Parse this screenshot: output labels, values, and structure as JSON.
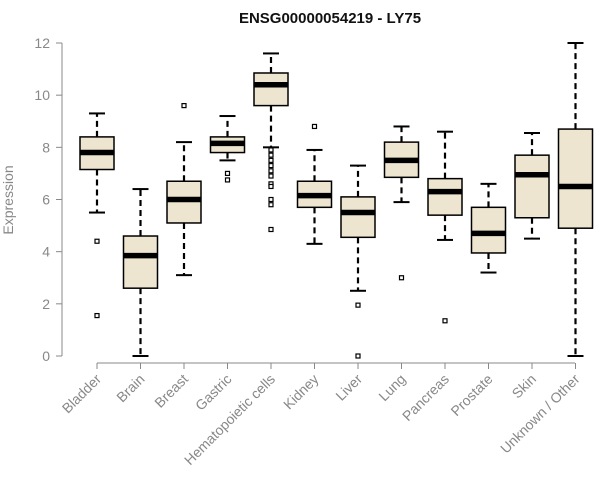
{
  "chart_data": {
    "type": "boxplot",
    "title": "ENSG00000054219 - LY75",
    "ylabel": "Expression",
    "xlabel": "",
    "ylim": [
      0,
      12
    ],
    "yticks": [
      0,
      2,
      4,
      6,
      8,
      10,
      12
    ],
    "grid": false,
    "legend": "none",
    "box_fill": "#ede5cf",
    "median_color": "#000000",
    "axis_color": "#888888",
    "categories": [
      "Bladder",
      "Brain",
      "Breast",
      "Gastric",
      "Hematopoietic cells",
      "Kidney",
      "Liver",
      "Lung",
      "Pancreas",
      "Prostate",
      "Skin",
      "Unknown / Other"
    ],
    "boxes": [
      {
        "category": "Bladder",
        "whisker_low": 5.5,
        "q1": 7.15,
        "median": 7.8,
        "q3": 8.4,
        "whisker_high": 9.3,
        "outliers": [
          4.4,
          1.55
        ]
      },
      {
        "category": "Brain",
        "whisker_low": 0.0,
        "q1": 2.6,
        "median": 3.85,
        "q3": 4.6,
        "whisker_high": 6.4,
        "outliers": []
      },
      {
        "category": "Breast",
        "whisker_low": 3.1,
        "q1": 5.1,
        "median": 6.0,
        "q3": 6.7,
        "whisker_high": 8.2,
        "outliers": [
          9.6
        ]
      },
      {
        "category": "Gastric",
        "whisker_low": 7.5,
        "q1": 7.8,
        "median": 8.15,
        "q3": 8.4,
        "whisker_high": 9.2,
        "outliers": [
          7.0,
          6.75
        ]
      },
      {
        "category": "Hematopoietic cells",
        "whisker_low": 8.0,
        "q1": 9.6,
        "median": 10.4,
        "q3": 10.85,
        "whisker_high": 11.6,
        "outliers": [
          7.9,
          7.7,
          7.5,
          7.3,
          7.1,
          6.9,
          6.6,
          6.5,
          6.0,
          5.8,
          4.85
        ]
      },
      {
        "category": "Kidney",
        "whisker_low": 4.3,
        "q1": 5.7,
        "median": 6.15,
        "q3": 6.7,
        "whisker_high": 7.9,
        "outliers": [
          8.8
        ]
      },
      {
        "category": "Liver",
        "whisker_low": 2.5,
        "q1": 4.55,
        "median": 5.5,
        "q3": 6.1,
        "whisker_high": 7.3,
        "outliers": [
          1.95,
          0.0
        ]
      },
      {
        "category": "Lung",
        "whisker_low": 5.9,
        "q1": 6.85,
        "median": 7.5,
        "q3": 8.2,
        "whisker_high": 8.8,
        "outliers": [
          3.0
        ]
      },
      {
        "category": "Pancreas",
        "whisker_low": 4.45,
        "q1": 5.4,
        "median": 6.3,
        "q3": 6.8,
        "whisker_high": 8.6,
        "outliers": [
          1.35
        ]
      },
      {
        "category": "Prostate",
        "whisker_low": 3.2,
        "q1": 3.95,
        "median": 4.7,
        "q3": 5.7,
        "whisker_high": 6.6,
        "outliers": []
      },
      {
        "category": "Skin",
        "whisker_low": 4.5,
        "q1": 5.3,
        "median": 6.95,
        "q3": 7.7,
        "whisker_high": 8.55,
        "outliers": []
      },
      {
        "category": "Unknown / Other",
        "whisker_low": 0.0,
        "q1": 4.9,
        "median": 6.5,
        "q3": 8.7,
        "whisker_high": 12.0,
        "outliers": []
      }
    ]
  }
}
